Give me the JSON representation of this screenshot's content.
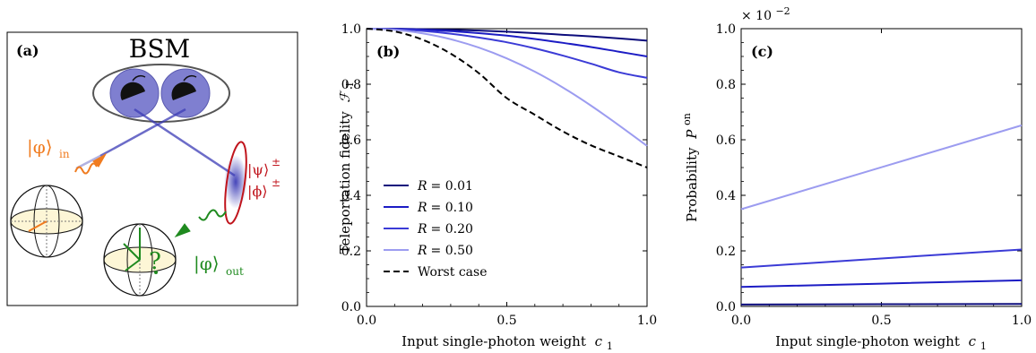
{
  "panel_a": {
    "label": "(a)",
    "bsm_title": "BSM",
    "phi_in": "|φ⟩",
    "phi_in_sub": "in",
    "psi": "|ψ⟩",
    "psi_sup": "±",
    "phi_state": "|ϕ⟩",
    "phi_state_sup": "±",
    "phi_out": "|φ⟩",
    "phi_out_sub": "out",
    "question_mark": "?",
    "colors": {
      "input": "#f07b1f",
      "output": "#1f8a1f",
      "bell": "#c0141c",
      "detector": "#7f7fd0",
      "beam": "#3b3bb5"
    }
  },
  "chart_data": [
    {
      "type": "line",
      "panel_label": "(b)",
      "xlabel": "Input single-photon weight",
      "xlabel_var": "c",
      "xlabel_sub": "1",
      "ylabel": "Teleportation fidelity",
      "ylabel_var": "ℱ",
      "ylabel_sub": "T",
      "xlim": [
        0.0,
        1.0
      ],
      "ylim": [
        0.0,
        1.0
      ],
      "xticks": [
        "0.0",
        "0.5",
        "1.0"
      ],
      "yticks": [
        "0.0",
        "0.2",
        "0.4",
        "0.6",
        "0.8",
        "1.0"
      ],
      "x": [
        0.0,
        0.1,
        0.2,
        0.3,
        0.4,
        0.5,
        0.6,
        0.7,
        0.8,
        0.9,
        1.0
      ],
      "series": [
        {
          "name": "R = 0.01",
          "legend_var": "R",
          "legend_val": "= 0.01",
          "color": "#0c0c7c",
          "dash": false,
          "values": [
            1.0,
            1.0,
            0.998,
            0.996,
            0.993,
            0.989,
            0.984,
            0.978,
            0.972,
            0.965,
            0.957
          ]
        },
        {
          "name": "R = 0.10",
          "legend_var": "R",
          "legend_val": "= 0.10",
          "color": "#1c1cc4",
          "dash": false,
          "values": [
            1.0,
            0.999,
            0.996,
            0.991,
            0.984,
            0.975,
            0.963,
            0.949,
            0.934,
            0.917,
            0.9
          ]
        },
        {
          "name": "R = 0.20",
          "legend_var": "R",
          "legend_val": "= 0.20",
          "color": "#3b3bd6",
          "dash": false,
          "values": [
            1.0,
            0.998,
            0.992,
            0.982,
            0.968,
            0.951,
            0.929,
            0.903,
            0.874,
            0.843,
            0.823
          ]
        },
        {
          "name": "R = 0.50",
          "legend_var": "R",
          "legend_val": "= 0.50",
          "color": "#9c9cf0",
          "dash": false,
          "values": [
            1.0,
            0.996,
            0.983,
            0.962,
            0.932,
            0.893,
            0.845,
            0.788,
            0.723,
            0.652,
            0.578
          ]
        },
        {
          "name": "Worst case",
          "legend_var": "",
          "legend_val": "Worst case",
          "color": "#000000",
          "dash": true,
          "values": [
            1.0,
            0.99,
            0.96,
            0.91,
            0.84,
            0.75,
            0.69,
            0.63,
            0.58,
            0.54,
            0.5
          ]
        }
      ]
    },
    {
      "type": "line",
      "panel_label": "(c)",
      "xlabel": "Input single-photon weight",
      "xlabel_var": "c",
      "xlabel_sub": "1",
      "ylabel": "Probability",
      "ylabel_var": "P",
      "ylabel_sup": "on",
      "scale_label": "× 10",
      "scale_exp": "−2",
      "xlim": [
        0.0,
        1.0
      ],
      "ylim": [
        0.0,
        1.0
      ],
      "xticks": [
        "0.0",
        "0.5",
        "1.0"
      ],
      "yticks": [
        "0.0",
        "0.2",
        "0.4",
        "0.6",
        "0.8",
        "1.0"
      ],
      "x": [
        0.0,
        1.0
      ],
      "series": [
        {
          "name": "R = 0.01",
          "color": "#0c0c7c",
          "values": [
            0.007,
            0.009
          ]
        },
        {
          "name": "R = 0.10",
          "color": "#1c1cc4",
          "values": [
            0.07,
            0.094
          ]
        },
        {
          "name": "R = 0.20",
          "color": "#3b3bd6",
          "values": [
            0.14,
            0.205
          ]
        },
        {
          "name": "R = 0.50",
          "color": "#9c9cf0",
          "values": [
            0.35,
            0.652
          ]
        }
      ]
    }
  ]
}
